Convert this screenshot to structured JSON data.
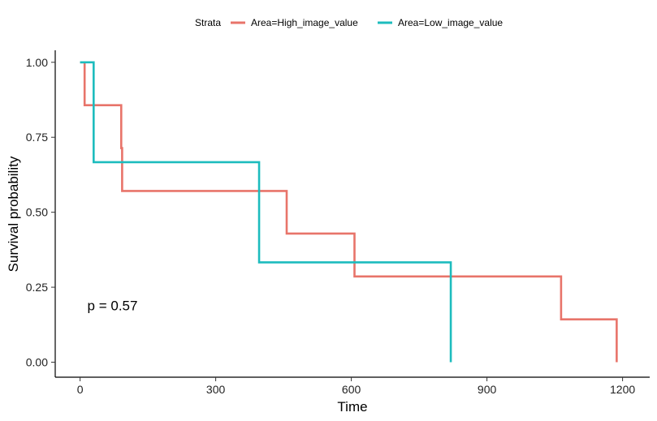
{
  "chart_data": {
    "type": "line",
    "step": true,
    "title": "",
    "xlabel": "Time",
    "ylabel": "Survival probability",
    "xlim": [
      -55,
      1260
    ],
    "ylim": [
      -0.05,
      1.04
    ],
    "x_ticks": [
      0,
      300,
      600,
      900,
      1200
    ],
    "x_tick_labels": [
      "0",
      "300",
      "600",
      "900",
      "1200"
    ],
    "y_ticks": [
      0,
      0.25,
      0.5,
      0.75,
      1.0
    ],
    "y_tick_labels": [
      "0.00",
      "0.25",
      "0.50",
      "0.75",
      "1.00"
    ],
    "grid": false,
    "legend": {
      "title": "Strata",
      "position": "top"
    },
    "series": [
      {
        "name": "Area=High_image_value",
        "color": "#E8746A",
        "points": [
          {
            "x": 0,
            "y": 1.0
          },
          {
            "x": 10,
            "y": 0.857
          },
          {
            "x": 91,
            "y": 0.714
          },
          {
            "x": 93,
            "y": 0.571
          },
          {
            "x": 457,
            "y": 0.429
          },
          {
            "x": 607,
            "y": 0.286
          },
          {
            "x": 1064,
            "y": 0.143
          },
          {
            "x": 1187,
            "y": 0.0
          }
        ]
      },
      {
        "name": "Area=Low_image_value",
        "color": "#1DBCBE",
        "points": [
          {
            "x": 0,
            "y": 1.0
          },
          {
            "x": 30,
            "y": 0.667
          },
          {
            "x": 396,
            "y": 0.333
          },
          {
            "x": 820,
            "y": 0.0
          }
        ]
      }
    ],
    "annotations": [
      {
        "text": "p = 0.57",
        "x": 25,
        "y": 0.19
      }
    ]
  }
}
